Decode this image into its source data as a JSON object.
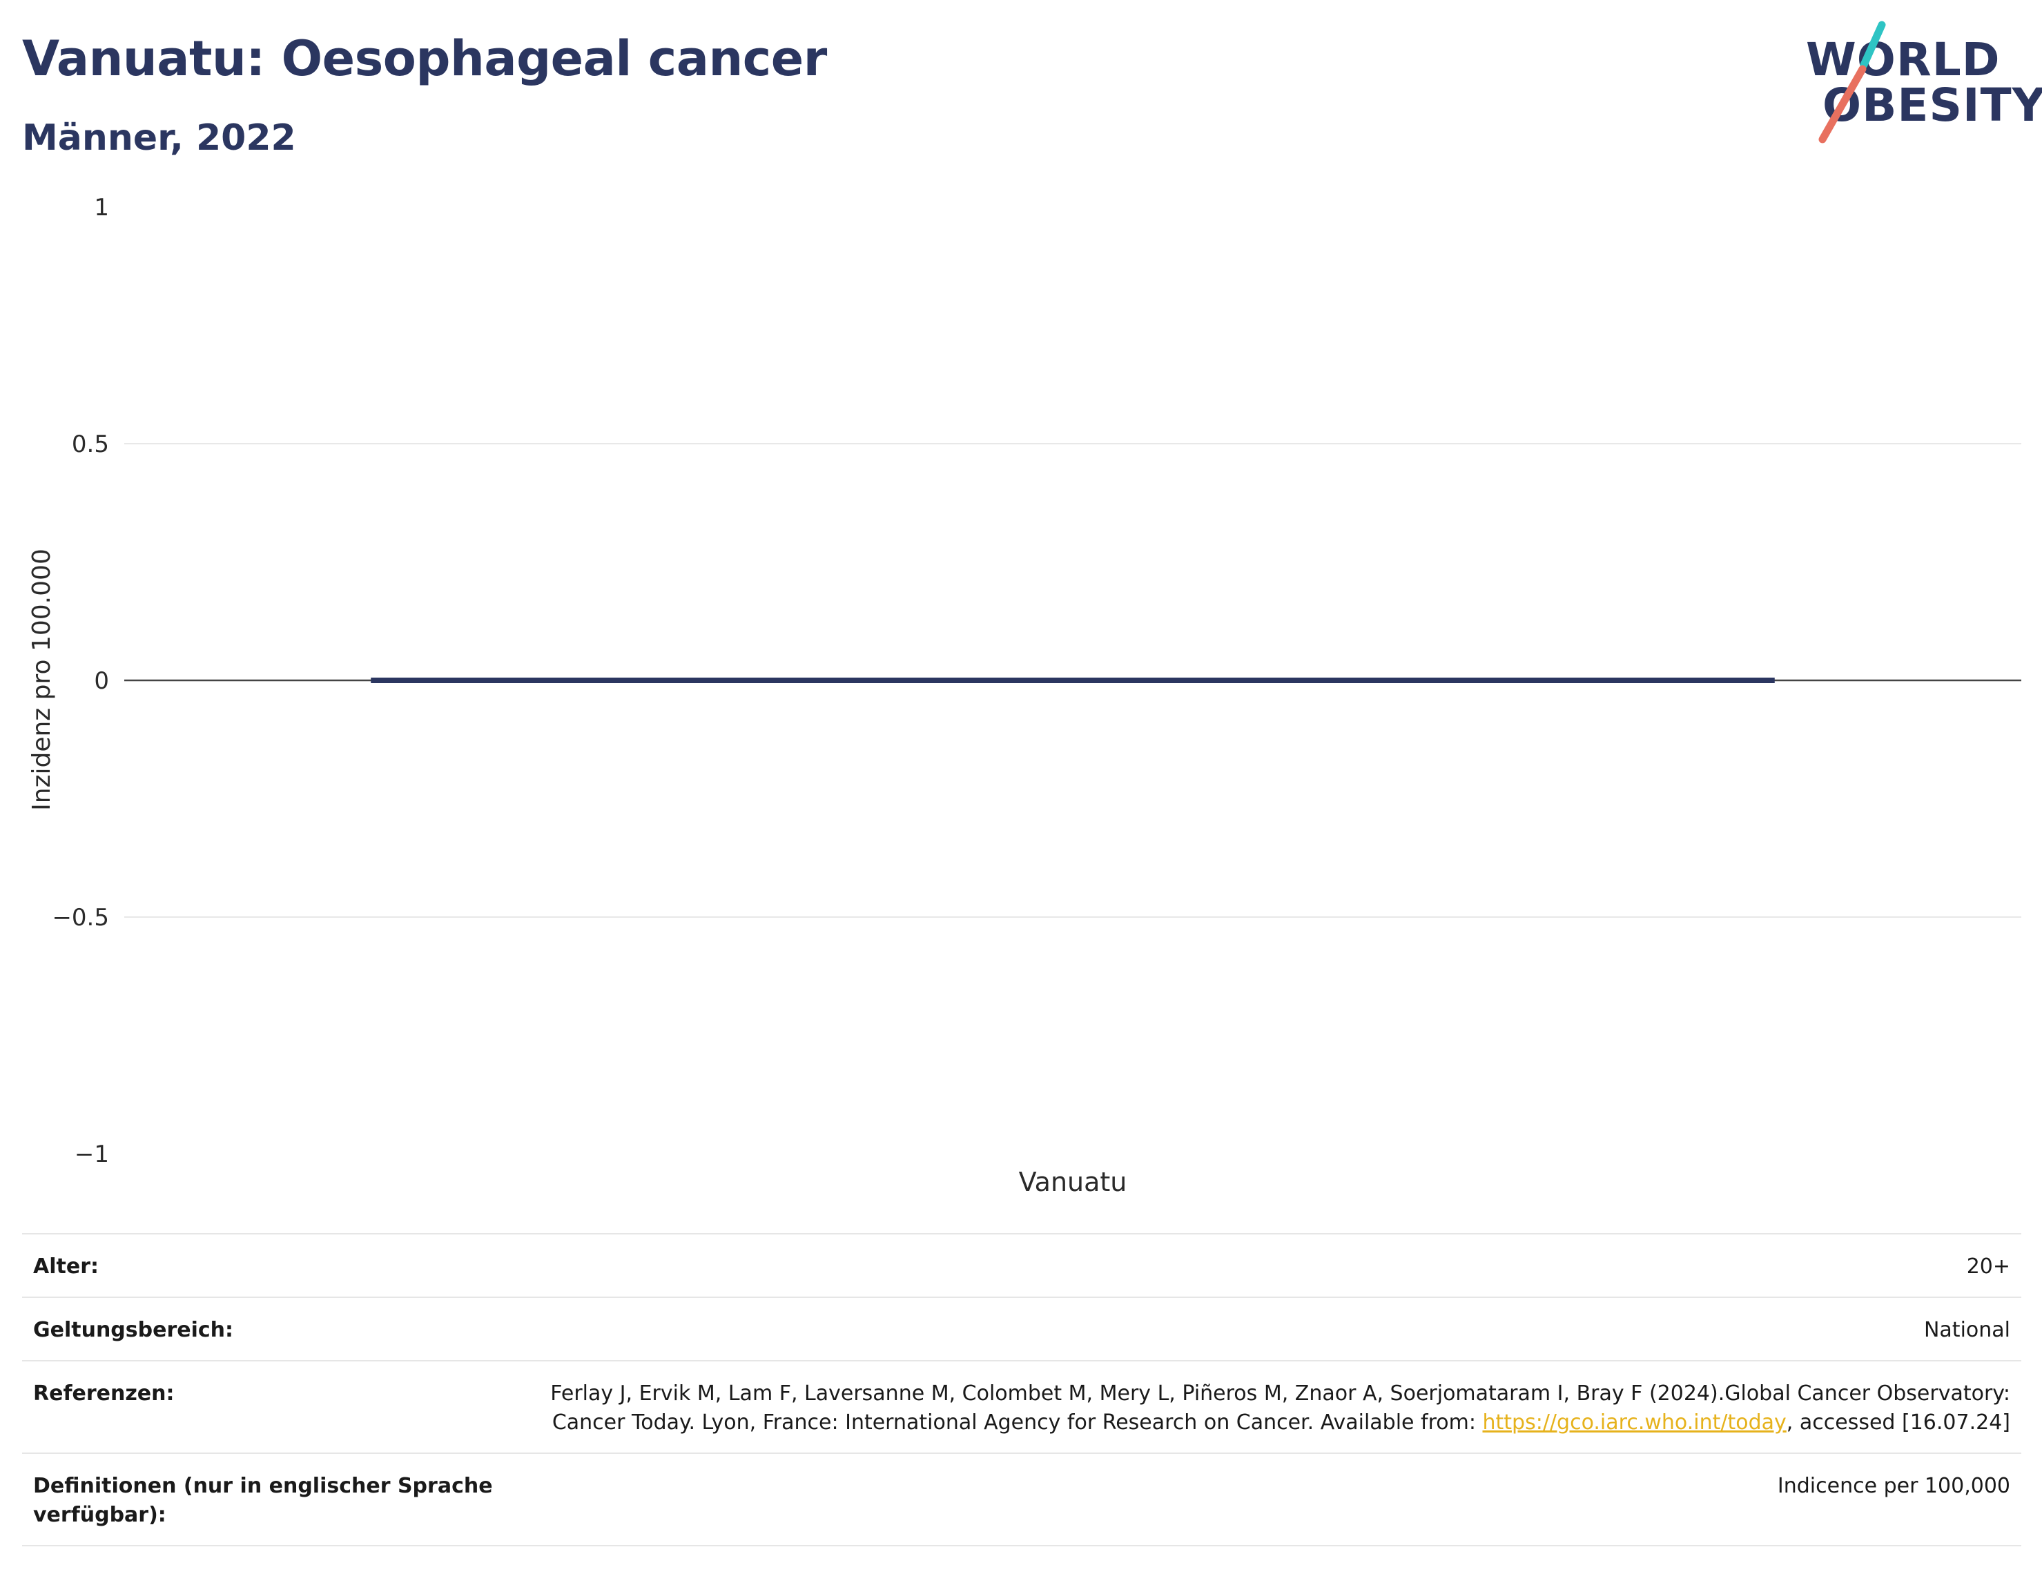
{
  "header": {
    "title": "Vanuatu: Oesophageal cancer",
    "subtitle": "Männer, 2022",
    "logo_line1": "WORLD",
    "logo_line2": "OBESITY"
  },
  "colors": {
    "title": "#2b3660",
    "bar": "#2b3660",
    "logo_teal": "#2ec4c4",
    "logo_coral": "#e8705f",
    "link": "#e6b21c"
  },
  "chart_data": {
    "type": "bar",
    "categories": [
      "Vanuatu"
    ],
    "values": [
      0
    ],
    "ylabel": "Inzidenz pro 100.000",
    "xlabel": "",
    "ylim": [
      -1,
      1
    ],
    "yticks": [
      1,
      0.5,
      0,
      -0.5,
      -1
    ],
    "ytick_labels": [
      "1",
      "0.5",
      "0",
      "−0.5",
      "−1"
    ],
    "grid": true
  },
  "meta": {
    "age_label": "Alter:",
    "age_value": "20+",
    "scope_label": "Geltungsbereich:",
    "scope_value": "National",
    "refs_label": "Referenzen:",
    "refs_text_1": "Ferlay J, Ervik M, Lam F, Laversanne M, Colombet M, Mery L, Piñeros M, Znaor A, Soerjomataram I, Bray F (2024).Global Cancer Observatory: Cancer Today. Lyon, France: International Agency for Research on Cancer. Available from: ",
    "refs_link": "https://gco.iarc.who.int/today",
    "refs_text_2": ", accessed [16.07.24]",
    "defs_label": "Definitionen (nur in englischer Sprache verfügbar):",
    "defs_value": "Indicence per 100,000"
  }
}
